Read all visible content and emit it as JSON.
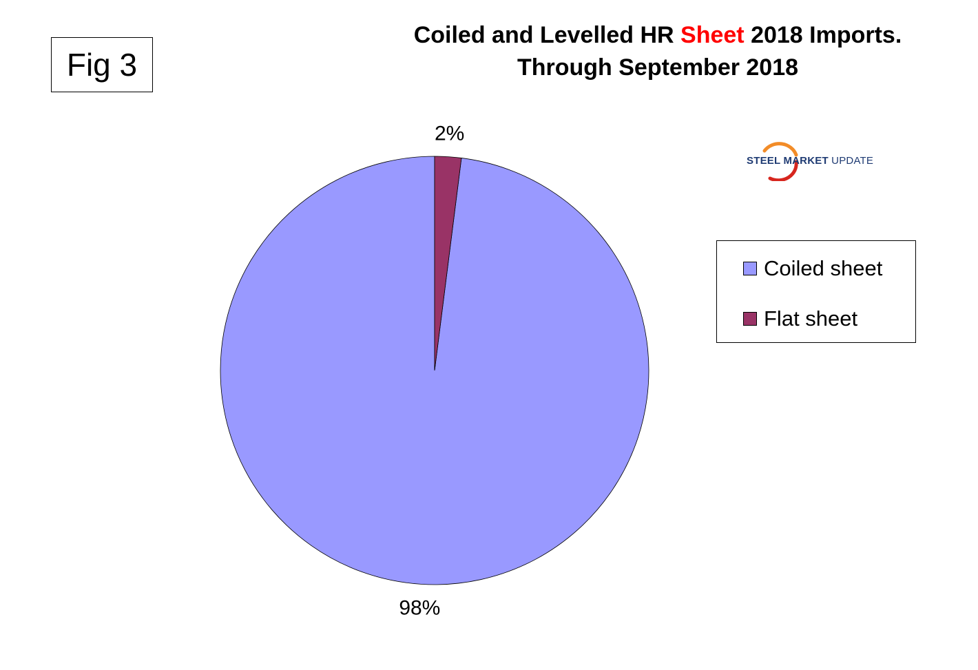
{
  "figure": {
    "label": "Fig 3"
  },
  "title": {
    "line1_part1": "Coiled and Levelled HR ",
    "line1_accent": "Sheet",
    "line1_part2": " 2018 Imports.",
    "line2": "Through September 2018",
    "accent_color": "#ff0000"
  },
  "logo": {
    "icon": "swoosh-logo-icon",
    "word1": "STEEL",
    "word2": " MARKET",
    "word3": " UPDATE",
    "colors": {
      "text": "#1f3b73",
      "swoosh_orange": "#f28c28",
      "swoosh_red": "#d7261e"
    }
  },
  "chart_data": {
    "type": "pie",
    "title": "Coiled and Levelled HR Sheet 2018 Imports. Through September 2018",
    "categories": [
      "Coiled sheet",
      "Flat sheet"
    ],
    "values": [
      98,
      2
    ],
    "data_labels": [
      "98%",
      "2%"
    ],
    "colors": [
      "#9999ff",
      "#993366"
    ],
    "legend_placement": "right",
    "start_angle_deg": 0,
    "direction": "counterclockwise"
  }
}
